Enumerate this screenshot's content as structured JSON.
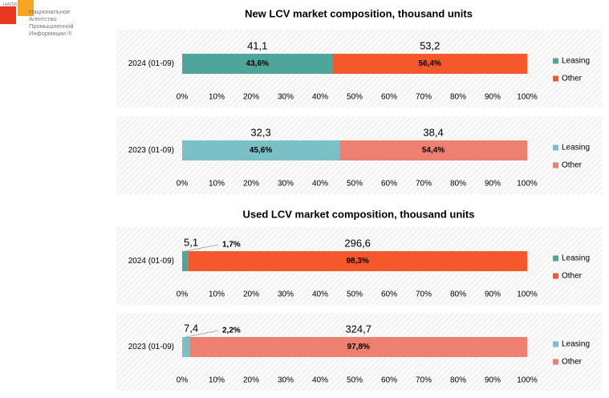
{
  "logo": {
    "abbr": "НАПИ",
    "lines": [
      "Национальное",
      "Агентство",
      "Промышленной",
      "Информации ®"
    ]
  },
  "chart_data": [
    {
      "type": "bar",
      "orientation": "horizontal",
      "stacked": true,
      "title": "New LCV market composition, thousand units",
      "categories": [
        "2024 (01-09)"
      ],
      "series": [
        {
          "name": "Leasing",
          "color": "#4ea59a",
          "values": [
            43.6
          ],
          "value_labels": [
            "43,6%"
          ],
          "units": [
            41.1
          ],
          "unit_labels": [
            "41,1"
          ]
        },
        {
          "name": "Other",
          "color": "#f4582b",
          "values": [
            56.4
          ],
          "value_labels": [
            "56,4%"
          ],
          "units": [
            53.2
          ],
          "unit_labels": [
            "53,2"
          ]
        }
      ],
      "xlim": [
        0,
        100
      ],
      "xticks": [
        {
          "value": 0,
          "label": "0%"
        },
        {
          "value": 10,
          "label": "10%"
        },
        {
          "value": 20,
          "label": "20%"
        },
        {
          "value": 30,
          "label": "30%"
        },
        {
          "value": 40,
          "label": "40%"
        },
        {
          "value": 50,
          "label": "50%"
        },
        {
          "value": 60,
          "label": "60%"
        },
        {
          "value": 70,
          "label": "70%"
        },
        {
          "value": 80,
          "label": "80%"
        },
        {
          "value": 90,
          "label": "90%"
        },
        {
          "value": 100,
          "label": "100%"
        }
      ],
      "legend": "right"
    },
    {
      "type": "bar",
      "orientation": "horizontal",
      "stacked": true,
      "categories": [
        "2023 (01-09)"
      ],
      "series": [
        {
          "name": "Leasing",
          "color": "#7bbfc7",
          "values": [
            45.6
          ],
          "value_labels": [
            "45,6%"
          ],
          "units": [
            32.3
          ],
          "unit_labels": [
            "32,3"
          ]
        },
        {
          "name": "Other",
          "color": "#ed8070",
          "values": [
            54.4
          ],
          "value_labels": [
            "54,4%"
          ],
          "units": [
            38.4
          ],
          "unit_labels": [
            "38,4"
          ]
        }
      ],
      "xlim": [
        0,
        100
      ],
      "xticks": [
        {
          "value": 0,
          "label": "0%"
        },
        {
          "value": 10,
          "label": "10%"
        },
        {
          "value": 20,
          "label": "20%"
        },
        {
          "value": 30,
          "label": "30%"
        },
        {
          "value": 40,
          "label": "40%"
        },
        {
          "value": 50,
          "label": "50%"
        },
        {
          "value": 60,
          "label": "60%"
        },
        {
          "value": 70,
          "label": "70%"
        },
        {
          "value": 80,
          "label": "80%"
        },
        {
          "value": 90,
          "label": "90%"
        },
        {
          "value": 100,
          "label": "100%"
        }
      ],
      "legend": "right"
    },
    {
      "type": "bar",
      "orientation": "horizontal",
      "stacked": true,
      "title": "Used LCV market composition, thousand units",
      "categories": [
        "2024 (01-09)"
      ],
      "series": [
        {
          "name": "Leasing",
          "color": "#4ea59a",
          "values": [
            1.7
          ],
          "value_labels": [
            "1,7%"
          ],
          "units": [
            5.1
          ],
          "unit_labels": [
            "5,1"
          ]
        },
        {
          "name": "Other",
          "color": "#f4582b",
          "values": [
            98.3
          ],
          "value_labels": [
            "98,3%"
          ],
          "units": [
            296.6
          ],
          "unit_labels": [
            "296,6"
          ]
        }
      ],
      "xlim": [
        0,
        100
      ],
      "xticks": [
        {
          "value": 0,
          "label": "0%"
        },
        {
          "value": 10,
          "label": "10%"
        },
        {
          "value": 20,
          "label": "20%"
        },
        {
          "value": 30,
          "label": "30%"
        },
        {
          "value": 40,
          "label": "40%"
        },
        {
          "value": 50,
          "label": "50%"
        },
        {
          "value": 60,
          "label": "60%"
        },
        {
          "value": 70,
          "label": "70%"
        },
        {
          "value": 80,
          "label": "80%"
        },
        {
          "value": 90,
          "label": "90%"
        },
        {
          "value": 100,
          "label": "100%"
        }
      ],
      "legend": "right"
    },
    {
      "type": "bar",
      "orientation": "horizontal",
      "stacked": true,
      "categories": [
        "2023 (01-09)"
      ],
      "series": [
        {
          "name": "Leasing",
          "color": "#7bbfc7",
          "values": [
            2.2
          ],
          "value_labels": [
            "2,2%"
          ],
          "units": [
            7.4
          ],
          "unit_labels": [
            "7,4"
          ]
        },
        {
          "name": "Other",
          "color": "#ed8070",
          "values": [
            97.8
          ],
          "value_labels": [
            "97,8%"
          ],
          "units": [
            324.7
          ],
          "unit_labels": [
            "324,7"
          ]
        }
      ],
      "xlim": [
        0,
        100
      ],
      "xticks": [
        {
          "value": 0,
          "label": "0%"
        },
        {
          "value": 10,
          "label": "10%"
        },
        {
          "value": 20,
          "label": "20%"
        },
        {
          "value": 30,
          "label": "30%"
        },
        {
          "value": 40,
          "label": "40%"
        },
        {
          "value": 50,
          "label": "50%"
        },
        {
          "value": 60,
          "label": "60%"
        },
        {
          "value": 70,
          "label": "70%"
        },
        {
          "value": 80,
          "label": "80%"
        },
        {
          "value": 90,
          "label": "90%"
        },
        {
          "value": 100,
          "label": "100%"
        }
      ],
      "legend": "right"
    }
  ]
}
